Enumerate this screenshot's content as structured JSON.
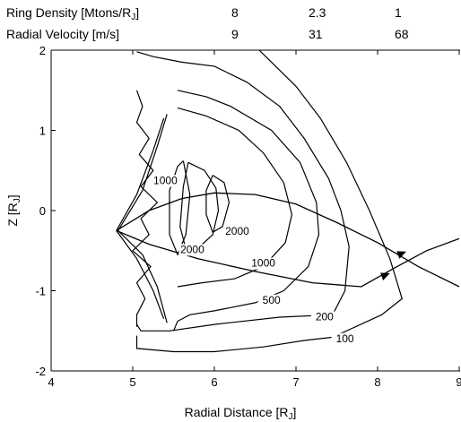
{
  "header_table": {
    "rows": [
      {
        "label": "Ring Density [Mtons/R",
        "sub": "J",
        "close": "]",
        "values": [
          "8",
          "2.3",
          "1"
        ]
      },
      {
        "label": "Radial Velocity [m/s]",
        "sub": "",
        "close": "",
        "values": [
          "9",
          "31",
          "68"
        ]
      }
    ]
  },
  "chart_data": {
    "type": "contour",
    "title": "",
    "xlabel": "Radial Distance [R",
    "xlabel_sub": "J",
    "xlabel_close": "]",
    "ylabel": "Z [R",
    "ylabel_sub": "J",
    "ylabel_close": "]",
    "xlim": [
      4,
      9
    ],
    "ylim": [
      -2,
      2
    ],
    "x_ticks": [
      4,
      5,
      6,
      7,
      8,
      9
    ],
    "x_tick_labels": [
      "4",
      "5",
      "6",
      "7",
      "8",
      "9"
    ],
    "y_ticks": [
      -2,
      -1,
      0,
      1,
      2
    ],
    "y_tick_labels": [
      "-2",
      "-1",
      "0",
      "1",
      "2"
    ],
    "grid": false,
    "contour_labels": [
      {
        "text": "1000",
        "x": 5.4,
        "y": 0.33
      },
      {
        "text": "2000",
        "x": 6.28,
        "y": -0.3
      },
      {
        "text": "2000",
        "x": 5.73,
        "y": -0.53
      },
      {
        "text": "1000",
        "x": 6.6,
        "y": -0.7
      },
      {
        "text": "500",
        "x": 6.7,
        "y": -1.16
      },
      {
        "text": "200",
        "x": 7.35,
        "y": -1.37
      },
      {
        "text": "100",
        "x": 7.6,
        "y": -1.64
      }
    ],
    "contours": [
      {
        "name": "100",
        "points": [
          [
            6.55,
            2.0
          ],
          [
            6.7,
            1.85
          ],
          [
            7.0,
            1.55
          ],
          [
            7.3,
            1.15
          ],
          [
            7.62,
            0.6
          ],
          [
            7.9,
            0.0
          ],
          [
            8.15,
            -0.6
          ],
          [
            8.3,
            -1.1
          ],
          [
            8.05,
            -1.3
          ],
          [
            7.45,
            -1.58
          ],
          [
            7.1,
            -1.62
          ],
          [
            6.6,
            -1.7
          ],
          [
            6.0,
            -1.76
          ],
          [
            5.5,
            -1.76
          ],
          [
            5.05,
            -1.72
          ],
          [
            5.05,
            -1.56
          ]
        ]
      },
      {
        "name": "200",
        "points": [
          [
            5.05,
            1.98
          ],
          [
            5.25,
            1.92
          ],
          [
            5.6,
            1.85
          ],
          [
            6.0,
            1.8
          ],
          [
            6.4,
            1.6
          ],
          [
            6.8,
            1.3
          ],
          [
            7.1,
            0.9
          ],
          [
            7.4,
            0.4
          ],
          [
            7.55,
            0.0
          ],
          [
            7.65,
            -0.45
          ],
          [
            7.6,
            -1.0
          ],
          [
            7.45,
            -1.3
          ],
          [
            6.8,
            -1.33
          ],
          [
            6.0,
            -1.42
          ],
          [
            5.45,
            -1.5
          ],
          [
            5.1,
            -1.5
          ],
          [
            5.05,
            -1.42
          ]
        ]
      },
      {
        "name": "500",
        "points": [
          [
            5.55,
            1.5
          ],
          [
            5.9,
            1.42
          ],
          [
            6.2,
            1.3
          ],
          [
            6.7,
            1.0
          ],
          [
            7.05,
            0.6
          ],
          [
            7.25,
            0.1
          ],
          [
            7.28,
            -0.3
          ],
          [
            7.15,
            -0.7
          ],
          [
            6.85,
            -1.0
          ],
          [
            6.5,
            -1.15
          ],
          [
            6.0,
            -1.25
          ],
          [
            5.7,
            -1.3
          ],
          [
            5.55,
            -1.38
          ],
          [
            5.5,
            -1.5
          ]
        ]
      },
      {
        "name": "1000",
        "points": [
          [
            5.55,
            1.28
          ],
          [
            5.9,
            1.18
          ],
          [
            6.3,
            1.0
          ],
          [
            6.6,
            0.72
          ],
          [
            6.85,
            0.35
          ],
          [
            6.95,
            -0.05
          ],
          [
            6.87,
            -0.4
          ],
          [
            6.6,
            -0.7
          ],
          [
            6.25,
            -0.85
          ],
          [
            5.85,
            -0.9
          ],
          [
            5.55,
            -0.95
          ]
        ]
      },
      {
        "name": "2000 outer",
        "points": [
          [
            5.68,
            0.6
          ],
          [
            5.88,
            0.5
          ],
          [
            6.02,
            0.28
          ],
          [
            6.05,
            0.0
          ],
          [
            5.98,
            -0.3
          ],
          [
            5.82,
            -0.45
          ],
          [
            5.65,
            -0.48
          ],
          [
            5.58,
            -0.2
          ],
          [
            5.62,
            0.3
          ],
          [
            5.68,
            0.6
          ]
        ]
      },
      {
        "name": "2000 inner",
        "points": [
          [
            5.98,
            0.44
          ],
          [
            6.12,
            0.35
          ],
          [
            6.18,
            0.1
          ],
          [
            6.1,
            -0.2
          ],
          [
            5.98,
            -0.27
          ],
          [
            5.9,
            -0.05
          ],
          [
            5.9,
            0.25
          ],
          [
            5.98,
            0.44
          ]
        ]
      },
      {
        "name": "1000 inner",
        "points": [
          [
            5.62,
            0.62
          ],
          [
            5.7,
            0.2
          ],
          [
            5.65,
            -0.3
          ],
          [
            5.55,
            -0.55
          ],
          [
            5.45,
            -0.3
          ],
          [
            5.45,
            0.25
          ],
          [
            5.55,
            0.55
          ],
          [
            5.62,
            0.62
          ]
        ]
      },
      {
        "name": "cusp outer",
        "points": [
          [
            5.42,
            1.2
          ],
          [
            5.3,
            0.8
          ],
          [
            5.12,
            0.25
          ],
          [
            4.82,
            -0.25
          ],
          [
            5.12,
            -0.55
          ],
          [
            5.3,
            -0.95
          ],
          [
            5.42,
            -1.4
          ]
        ]
      },
      {
        "name": "cusp inner",
        "points": [
          [
            5.38,
            1.15
          ],
          [
            5.25,
            0.75
          ],
          [
            5.05,
            0.2
          ],
          [
            4.8,
            -0.25
          ],
          [
            5.05,
            -0.6
          ],
          [
            5.25,
            -1.0
          ],
          [
            5.38,
            -1.35
          ]
        ]
      },
      {
        "name": "jagged edge",
        "points": [
          [
            5.05,
            1.5
          ],
          [
            5.12,
            1.3
          ],
          [
            5.05,
            1.1
          ],
          [
            5.2,
            0.9
          ],
          [
            5.08,
            0.7
          ],
          [
            5.25,
            0.5
          ],
          [
            5.1,
            0.3
          ],
          [
            5.3,
            0.1
          ],
          [
            5.1,
            -0.1
          ],
          [
            5.2,
            -0.3
          ],
          [
            5.0,
            -0.5
          ],
          [
            5.22,
            -0.7
          ],
          [
            5.05,
            -0.9
          ],
          [
            5.15,
            -1.1
          ],
          [
            5.05,
            -1.3
          ],
          [
            5.05,
            -1.45
          ]
        ]
      }
    ],
    "trajectories": [
      {
        "name": "path 1",
        "points": [
          [
            4.8,
            -0.25
          ],
          [
            5.2,
            0.0
          ],
          [
            5.6,
            0.15
          ],
          [
            6.0,
            0.22
          ],
          [
            6.5,
            0.2
          ],
          [
            7.0,
            0.08
          ],
          [
            7.5,
            -0.15
          ],
          [
            8.0,
            -0.4
          ],
          [
            8.5,
            -0.7
          ],
          [
            9.0,
            -0.95
          ]
        ]
      },
      {
        "name": "path 2",
        "points": [
          [
            4.8,
            -0.25
          ],
          [
            5.2,
            -0.42
          ],
          [
            5.8,
            -0.6
          ],
          [
            6.5,
            -0.76
          ],
          [
            7.2,
            -0.9
          ],
          [
            7.8,
            -0.95
          ],
          [
            8.2,
            -0.72
          ],
          [
            8.6,
            -0.5
          ],
          [
            9.0,
            -0.35
          ]
        ]
      }
    ],
    "arrow_markers": [
      {
        "x": 8.3,
        "y": -0.53
      },
      {
        "x": 8.1,
        "y": -0.8
      }
    ]
  }
}
